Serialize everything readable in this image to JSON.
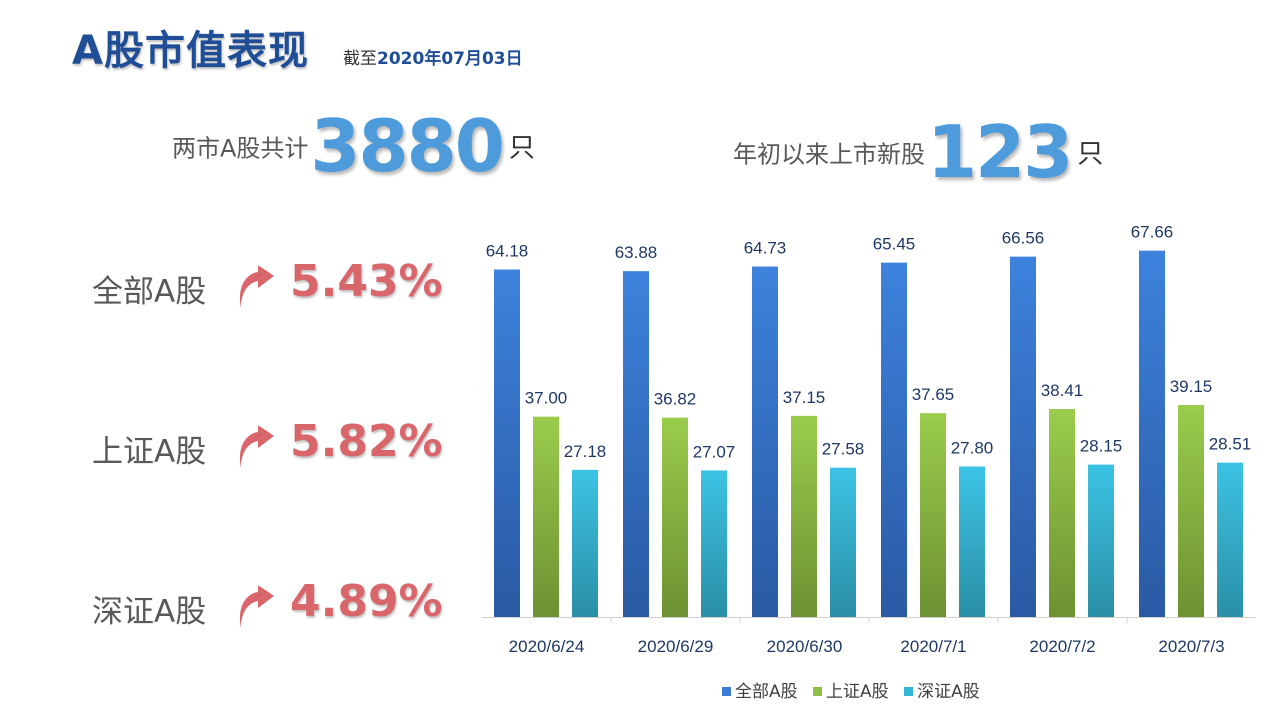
{
  "header": {
    "title": "A股市值表现",
    "asof_prefix": "截至",
    "asof_date": "2020年07月03日"
  },
  "stats": [
    {
      "label": "两市A股共计",
      "value": "3880",
      "unit": "只"
    },
    {
      "label": "年初以来上市新股",
      "value": "123",
      "unit": "只"
    }
  ],
  "indices": [
    {
      "name": "全部A股",
      "change": "5.43%",
      "direction": "up"
    },
    {
      "name": "上证A股",
      "change": "5.82%",
      "direction": "up"
    },
    {
      "name": "深证A股",
      "change": "4.89%",
      "direction": "up"
    }
  ],
  "colors": {
    "title": "#1f4e96",
    "stat_number": "#4e9bdc",
    "change": "#d9666b",
    "series_all": "#3a7bd5",
    "series_sh": "#8ec047",
    "series_sz": "#33b5d6"
  },
  "icons": {
    "change_arrow": "up-arrow-icon"
  },
  "chart_data": {
    "type": "bar",
    "categories": [
      "2020/6/24",
      "2020/6/29",
      "2020/6/30",
      "2020/7/1",
      "2020/7/2",
      "2020/7/3"
    ],
    "series": [
      {
        "name": "全部A股",
        "values": [
          64.18,
          63.88,
          64.73,
          65.45,
          66.56,
          67.66
        ]
      },
      {
        "name": "上证A股",
        "values": [
          37.0,
          36.82,
          37.15,
          37.65,
          38.41,
          39.15
        ]
      },
      {
        "name": "深证A股",
        "values": [
          27.18,
          27.07,
          27.58,
          27.8,
          28.15,
          28.51
        ]
      }
    ],
    "ylim": [
      0,
      70
    ],
    "grid": false,
    "legend": "bottom",
    "title": "",
    "xlabel": "",
    "ylabel": ""
  }
}
